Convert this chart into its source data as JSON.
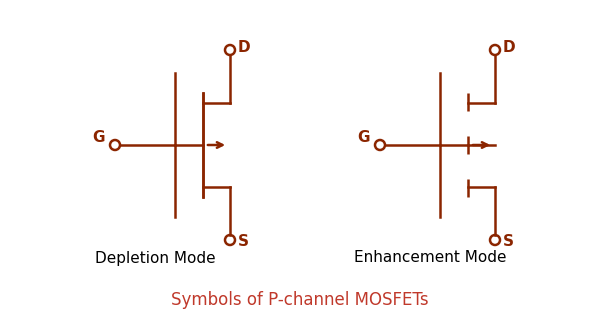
{
  "color": "#8B2500",
  "lw": 1.8,
  "title": "Symbols of P-channel MOSFETs",
  "title_color": "#C0392B",
  "title_fontsize": 12,
  "label_fontsize": 11,
  "mode_fontsize": 11,
  "bg_color": "#ffffff",
  "dep_label": "Depletion Mode",
  "enh_label": "Enhancement Mode"
}
